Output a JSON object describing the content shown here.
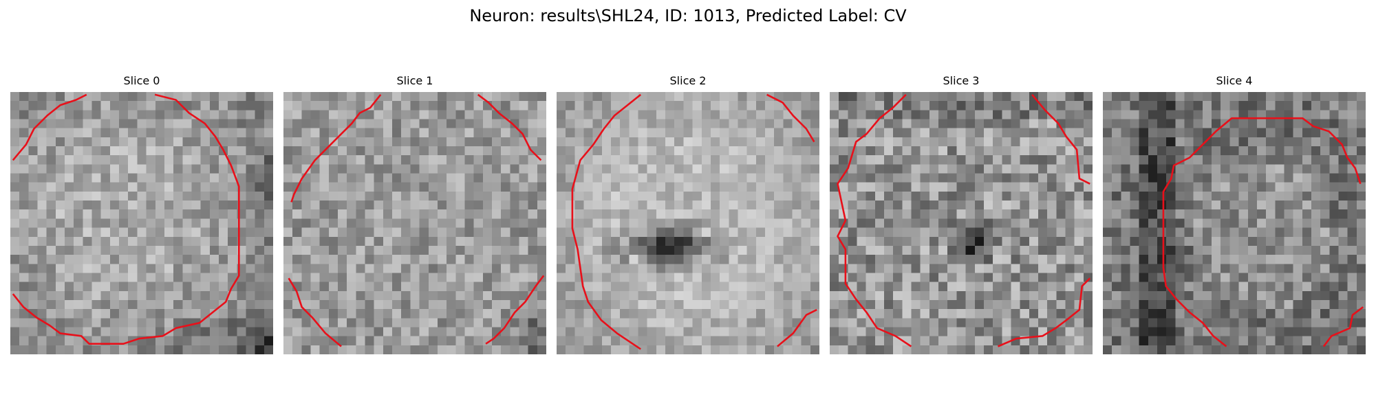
{
  "figure": {
    "title": "Neuron: results\\SHL24, ID: 1013, Predicted Label: CV"
  },
  "slices": [
    {
      "title": "Slice 0"
    },
    {
      "title": "Slice 1"
    },
    {
      "title": "Slice 2"
    },
    {
      "title": "Slice 3"
    },
    {
      "title": "Slice 4"
    }
  ],
  "colors": {
    "contour": "#e8101a",
    "background": "#ffffff"
  }
}
